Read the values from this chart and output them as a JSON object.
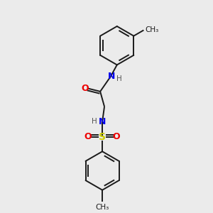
{
  "background_color": "#ebebeb",
  "bond_color": "#1a1a1a",
  "atom_colors": {
    "N": "#0000ee",
    "O": "#ee0000",
    "S": "#cccc00",
    "C": "#1a1a1a",
    "H": "#555555"
  },
  "figsize": [
    3.0,
    3.0
  ],
  "dpi": 100,
  "xlim": [
    0,
    10
  ],
  "ylim": [
    0,
    10
  ]
}
